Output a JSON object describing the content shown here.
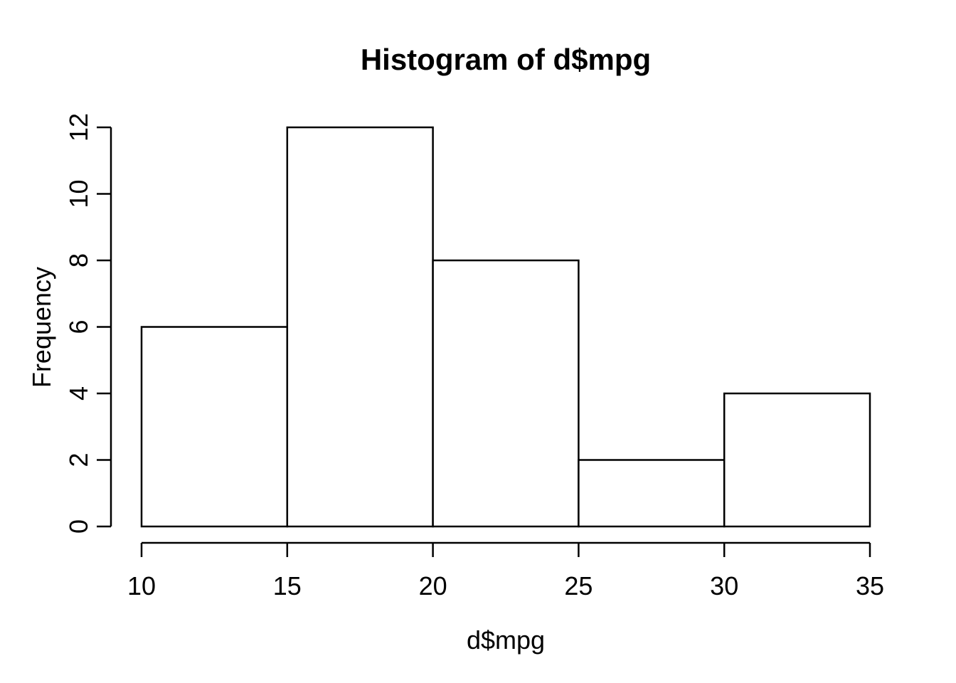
{
  "figure": {
    "background": "#ffffff"
  },
  "chart_data": {
    "type": "bar",
    "subtype": "histogram",
    "title": "Histogram of d$mpg",
    "xlabel": "d$mpg",
    "ylabel": "Frequency",
    "categories": [
      "10-15",
      "15-20",
      "20-25",
      "25-30",
      "30-35"
    ],
    "bins": [
      {
        "range": [
          10,
          15
        ],
        "count": 6
      },
      {
        "range": [
          15,
          20
        ],
        "count": 12
      },
      {
        "range": [
          20,
          25
        ],
        "count": 8
      },
      {
        "range": [
          25,
          30
        ],
        "count": 2
      },
      {
        "range": [
          30,
          35
        ],
        "count": 4
      }
    ],
    "values": [
      6,
      12,
      8,
      2,
      4
    ],
    "x_ticks": [
      10,
      15,
      20,
      25,
      30,
      35
    ],
    "y_ticks": [
      0,
      2,
      4,
      6,
      8,
      10,
      12
    ],
    "xlim": [
      10,
      35
    ],
    "ylim": [
      0,
      12
    ],
    "grid": false,
    "legend": "none",
    "bar_fill": "#ffffff",
    "stroke_color": "#000000",
    "text_color": "#000000"
  }
}
